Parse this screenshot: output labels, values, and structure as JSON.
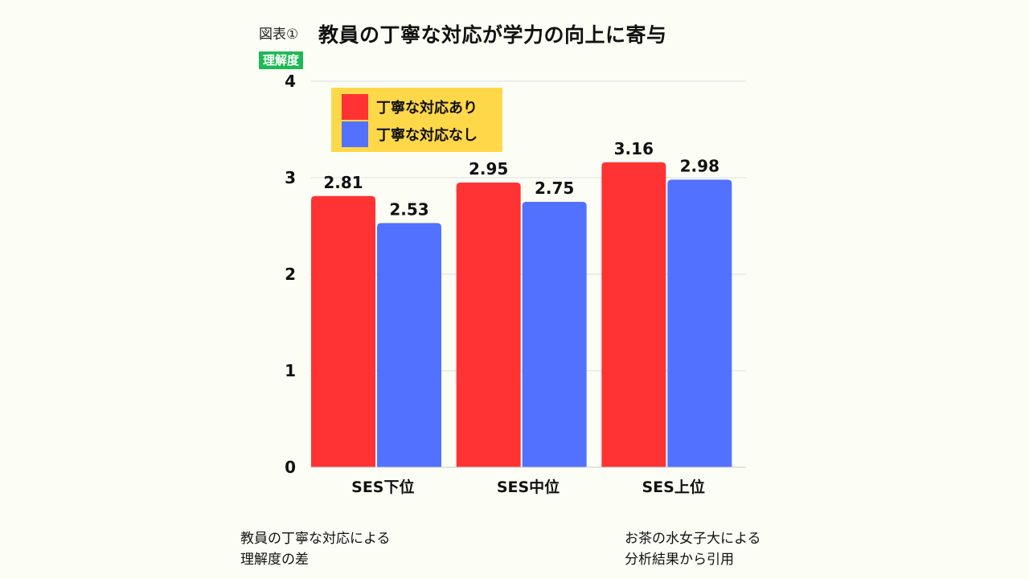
{
  "figure_label": "図表①",
  "title": "教員の丁寧な対応が学力の向上に寄与",
  "ylabel": "理解度",
  "notes": {
    "left": [
      "教員の丁寧な対応による",
      "理解度の差"
    ],
    "right": [
      "お茶の水女子大による",
      "分析結果から引用"
    ]
  },
  "chart_data": {
    "type": "bar",
    "title": "教員の丁寧な対応が学力の向上に寄与",
    "xlabel": "",
    "ylabel": "理解度",
    "ylim": [
      0,
      4
    ],
    "yticks": [
      0,
      1,
      2,
      3,
      4
    ],
    "grid": true,
    "legend_position": "top-left",
    "categories": [
      "SES下位",
      "SES中位",
      "SES上位"
    ],
    "series": [
      {
        "name": "丁寧な対応あり",
        "values": [
          2.81,
          2.95,
          3.16
        ],
        "color": "#ff3333",
        "labels": [
          "2.81",
          "2.95",
          "3.16"
        ]
      },
      {
        "name": "丁寧な対応なし",
        "values": [
          2.53,
          2.75,
          2.98
        ],
        "color": "#5271ff",
        "labels": [
          "2.53",
          "2.75",
          "2.98"
        ]
      }
    ]
  }
}
